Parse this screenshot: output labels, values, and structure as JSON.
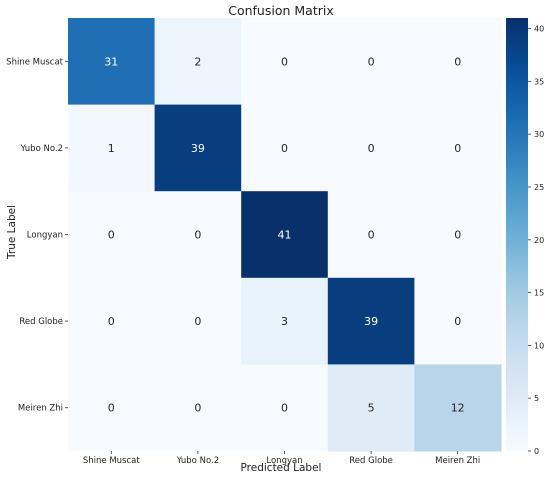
{
  "chart_data": {
    "type": "heatmap",
    "title": "Confusion Matrix",
    "xlabel": "Predicted Label",
    "ylabel": "True Label",
    "x_categories": [
      "Shine Muscat",
      "Yubo No.2",
      "Longyan",
      "Red Globe",
      "Meiren Zhi"
    ],
    "y_categories": [
      "Shine Muscat",
      "Yubo No.2",
      "Longyan",
      "Red Globe",
      "Meiren Zhi"
    ],
    "matrix": [
      [
        31,
        2,
        0,
        0,
        0
      ],
      [
        1,
        39,
        0,
        0,
        0
      ],
      [
        0,
        0,
        41,
        0,
        0
      ],
      [
        0,
        0,
        3,
        39,
        0
      ],
      [
        0,
        0,
        0,
        5,
        12
      ]
    ],
    "colorbar": {
      "min": 0,
      "max": 41,
      "ticks": [
        0,
        5,
        10,
        15,
        20,
        25,
        30,
        35,
        40
      ],
      "colormap": "Blues"
    },
    "grid": false
  }
}
